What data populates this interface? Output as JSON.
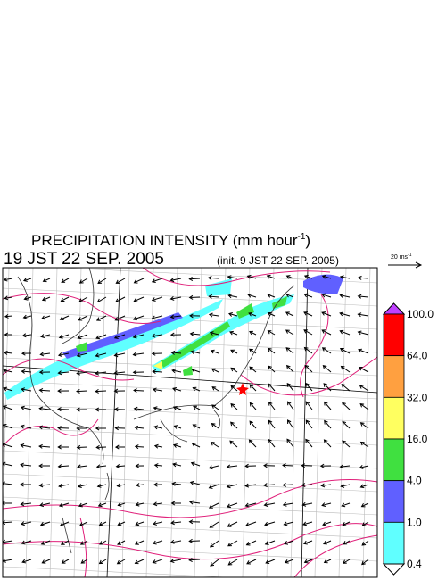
{
  "header": {
    "title": "PRECIPITATION INTENSITY (mm hour",
    "title_sup": "-1",
    "title_end": ")",
    "valid_time": "19 JST 22 SEP. 2005",
    "init_time": "(init. 9 JST 22 SEP. 2005)"
  },
  "reference_arrow": {
    "label": "20 ms",
    "label_sup": "-1"
  },
  "legend": {
    "levels": [
      {
        "label": "100.0",
        "color": "#ff0000"
      },
      {
        "label": "64.0",
        "color": "#ffa040"
      },
      {
        "label": "32.0",
        "color": "#ffff60"
      },
      {
        "label": "16.0",
        "color": "#40e040"
      },
      {
        "label": "4.0",
        "color": "#6060ff"
      },
      {
        "label": "1.0",
        "color": "#60ffff"
      },
      {
        "label": "0.4",
        "color": "#ffffff"
      }
    ],
    "over_color": "#c040ff"
  }
}
